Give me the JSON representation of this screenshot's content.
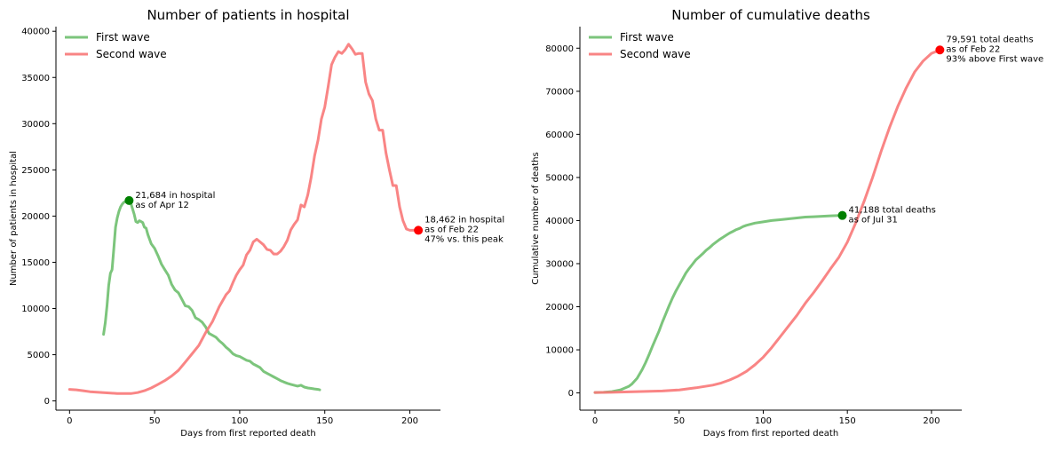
{
  "colors": {
    "first_wave": "#6ebf6e",
    "second_wave": "#f87878",
    "first_marker": "#008000",
    "second_marker": "#ff0000"
  },
  "chart_data": [
    {
      "type": "line",
      "title": "Number of patients in hospital",
      "xlabel": "Days from first reported death",
      "ylabel": "Number of patients in hospital",
      "xlim": [
        -8,
        218
      ],
      "ylim": [
        -1000,
        40500
      ],
      "xticks": [
        "0",
        "50",
        "100",
        "150",
        "200"
      ],
      "yticks": [
        "0",
        "5000",
        "10000",
        "15000",
        "20000",
        "25000",
        "30000",
        "35000",
        "40000"
      ],
      "grid": false,
      "legend": "top-left",
      "series": [
        {
          "name": "First wave",
          "color_key": "first_wave",
          "x": [
            20,
            21,
            22,
            23,
            24,
            25,
            26,
            27,
            28,
            29,
            30,
            31,
            32,
            33,
            34,
            35,
            36,
            37,
            38,
            39,
            40,
            41,
            42,
            43,
            44,
            45,
            46,
            48,
            50,
            52,
            54,
            56,
            58,
            60,
            62,
            64,
            66,
            68,
            70,
            72,
            74,
            76,
            78,
            80,
            82,
            84,
            86,
            88,
            90,
            92,
            94,
            96,
            98,
            100,
            102,
            104,
            106,
            108,
            110,
            112,
            114,
            116,
            118,
            120,
            122,
            124,
            126,
            128,
            130,
            132,
            134,
            136,
            138,
            140,
            142,
            144,
            146,
            147
          ],
          "y": [
            7200,
            8500,
            10300,
            12500,
            13800,
            14200,
            16400,
            18800,
            19800,
            20500,
            21000,
            21300,
            21500,
            21600,
            21650,
            21684,
            21400,
            20800,
            20200,
            19400,
            19300,
            19500,
            19400,
            19300,
            18800,
            18700,
            18000,
            17000,
            16500,
            15700,
            14800,
            14200,
            13600,
            12600,
            12000,
            11700,
            11000,
            10300,
            10200,
            9800,
            9000,
            8800,
            8500,
            8000,
            7300,
            7100,
            6900,
            6500,
            6200,
            5800,
            5500,
            5100,
            4900,
            4800,
            4600,
            4400,
            4300,
            4000,
            3800,
            3600,
            3200,
            3000,
            2800,
            2600,
            2400,
            2200,
            2050,
            1900,
            1800,
            1700,
            1600,
            1700,
            1500,
            1400,
            1350,
            1300,
            1250,
            1200
          ]
        },
        {
          "name": "Second wave",
          "color_key": "second_wave",
          "x": [
            0,
            4,
            8,
            12,
            16,
            20,
            24,
            28,
            32,
            36,
            40,
            44,
            48,
            52,
            56,
            60,
            64,
            68,
            72,
            76,
            80,
            84,
            88,
            92,
            94,
            96,
            98,
            100,
            102,
            104,
            106,
            108,
            110,
            112,
            114,
            116,
            118,
            120,
            122,
            124,
            126,
            128,
            130,
            132,
            134,
            136,
            138,
            140,
            142,
            144,
            146,
            148,
            150,
            152,
            154,
            156,
            158,
            160,
            162,
            164,
            166,
            168,
            170,
            172,
            174,
            176,
            178,
            180,
            182,
            184,
            186,
            188,
            190,
            192,
            194,
            196,
            198,
            200,
            202,
            204
          ],
          "y": [
            1250,
            1200,
            1100,
            1000,
            950,
            900,
            850,
            800,
            800,
            800,
            900,
            1100,
            1400,
            1800,
            2200,
            2700,
            3300,
            4200,
            5100,
            6000,
            7400,
            8600,
            10200,
            11500,
            11900,
            12800,
            13600,
            14200,
            14700,
            15800,
            16300,
            17200,
            17500,
            17200,
            16900,
            16400,
            16300,
            15900,
            15900,
            16200,
            16700,
            17400,
            18500,
            19100,
            19600,
            21200,
            21000,
            22300,
            24200,
            26500,
            28200,
            30500,
            31800,
            34000,
            36400,
            37200,
            37800,
            37600,
            38000,
            38600,
            38100,
            37500,
            37600,
            37600,
            34500,
            33200,
            32500,
            30500,
            29300,
            29300,
            26800,
            25000,
            23300,
            23300,
            21000,
            19500,
            18600,
            18462,
            18462,
            18462
          ]
        }
      ],
      "markers": [
        {
          "x": 35,
          "y": 21684,
          "color_key": "first_marker",
          "lines": [
            "21,684 in hospital",
            "as of Apr 12"
          ]
        },
        {
          "x": 205,
          "y": 18462,
          "color_key": "second_marker",
          "lines": [
            "18,462 in hospital",
            "as of Feb 22",
            "47% vs. this peak"
          ]
        }
      ]
    },
    {
      "type": "line",
      "title": "Number of cumulative deaths",
      "xlabel": "Days from first reported death",
      "ylabel": "Cumulative number of deaths",
      "xlim": [
        -9,
        218
      ],
      "ylim": [
        -4000,
        85000
      ],
      "xticks": [
        "0",
        "50",
        "100",
        "150",
        "200"
      ],
      "yticks": [
        "0",
        "10000",
        "20000",
        "30000",
        "40000",
        "50000",
        "60000",
        "70000",
        "80000"
      ],
      "grid": false,
      "legend": "top-left",
      "series": [
        {
          "name": "First wave",
          "color_key": "first_wave",
          "x": [
            0,
            5,
            10,
            15,
            20,
            22,
            25,
            28,
            30,
            32,
            34,
            36,
            38,
            40,
            42,
            44,
            46,
            48,
            50,
            52,
            54,
            56,
            58,
            60,
            62,
            64,
            66,
            68,
            70,
            72,
            74,
            76,
            78,
            80,
            82,
            84,
            86,
            88,
            90,
            92,
            95,
            100,
            105,
            110,
            115,
            120,
            125,
            130,
            135,
            140,
            145,
            147
          ],
          "y": [
            100,
            150,
            300,
            700,
            1500,
            2100,
            3400,
            5400,
            7000,
            8800,
            10700,
            12500,
            14300,
            16400,
            18300,
            20200,
            22000,
            23600,
            25000,
            26400,
            27800,
            28900,
            29900,
            30900,
            31600,
            32300,
            33100,
            33700,
            34400,
            35000,
            35600,
            36100,
            36600,
            37100,
            37500,
            37900,
            38200,
            38600,
            38900,
            39100,
            39400,
            39700,
            40000,
            40200,
            40400,
            40600,
            40800,
            40900,
            41000,
            41100,
            41150,
            41188
          ]
        },
        {
          "name": "Second wave",
          "color_key": "second_wave",
          "x": [
            0,
            10,
            20,
            30,
            40,
            50,
            55,
            60,
            65,
            70,
            75,
            80,
            85,
            90,
            95,
            100,
            105,
            110,
            115,
            120,
            125,
            130,
            135,
            140,
            145,
            150,
            155,
            160,
            165,
            170,
            175,
            180,
            185,
            190,
            195,
            200,
            205
          ],
          "y": [
            100,
            150,
            250,
            350,
            450,
            700,
            950,
            1200,
            1500,
            1800,
            2300,
            3000,
            3900,
            5000,
            6500,
            8300,
            10500,
            13000,
            15500,
            18000,
            20800,
            23300,
            26000,
            28800,
            31500,
            35000,
            39500,
            44500,
            50000,
            56000,
            61500,
            66500,
            70800,
            74500,
            77000,
            78800,
            79591
          ]
        }
      ],
      "markers": [
        {
          "x": 147,
          "y": 41188,
          "color_key": "first_marker",
          "lines": [
            "41,188 total deaths",
            "as of Jul 31"
          ]
        },
        {
          "x": 205,
          "y": 79591,
          "color_key": "second_marker",
          "lines": [
            "79,591 total deaths",
            "as of Feb 22",
            "93% above First wave"
          ]
        }
      ]
    }
  ]
}
